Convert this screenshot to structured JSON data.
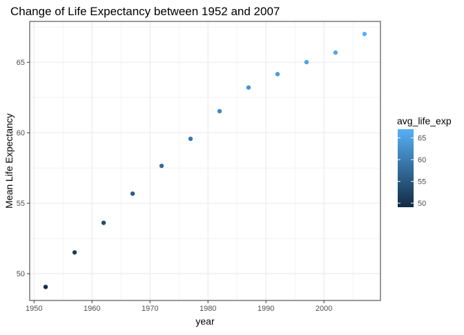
{
  "chart_data": {
    "type": "scatter",
    "title": "Change of Life Expectancy between 1952 and 2007",
    "xlabel": "year",
    "ylabel": "Mean Life Expectancy",
    "xlim": [
      1949.25,
      2009.75
    ],
    "ylim": [
      48.1,
      67.9
    ],
    "xticks": [
      1950,
      1960,
      1970,
      1980,
      1990,
      2000
    ],
    "yticks": [
      50,
      55,
      60,
      65
    ],
    "x": [
      1952,
      1957,
      1962,
      1967,
      1972,
      1977,
      1982,
      1987,
      1992,
      1997,
      2002,
      2007
    ],
    "y": [
      49.06,
      51.51,
      53.61,
      55.68,
      57.65,
      59.57,
      61.53,
      63.21,
      64.16,
      65.01,
      65.69,
      67.01
    ],
    "grid": true,
    "legend": {
      "title": "avg_life_exp",
      "ticks": [
        50,
        55,
        60,
        65
      ],
      "range": [
        49.06,
        67.01
      ],
      "position": "right"
    },
    "colors": {
      "low": "#132b43",
      "high": "#56b1f7",
      "panel_border": "#333333",
      "grid": "#ebebeb"
    }
  }
}
